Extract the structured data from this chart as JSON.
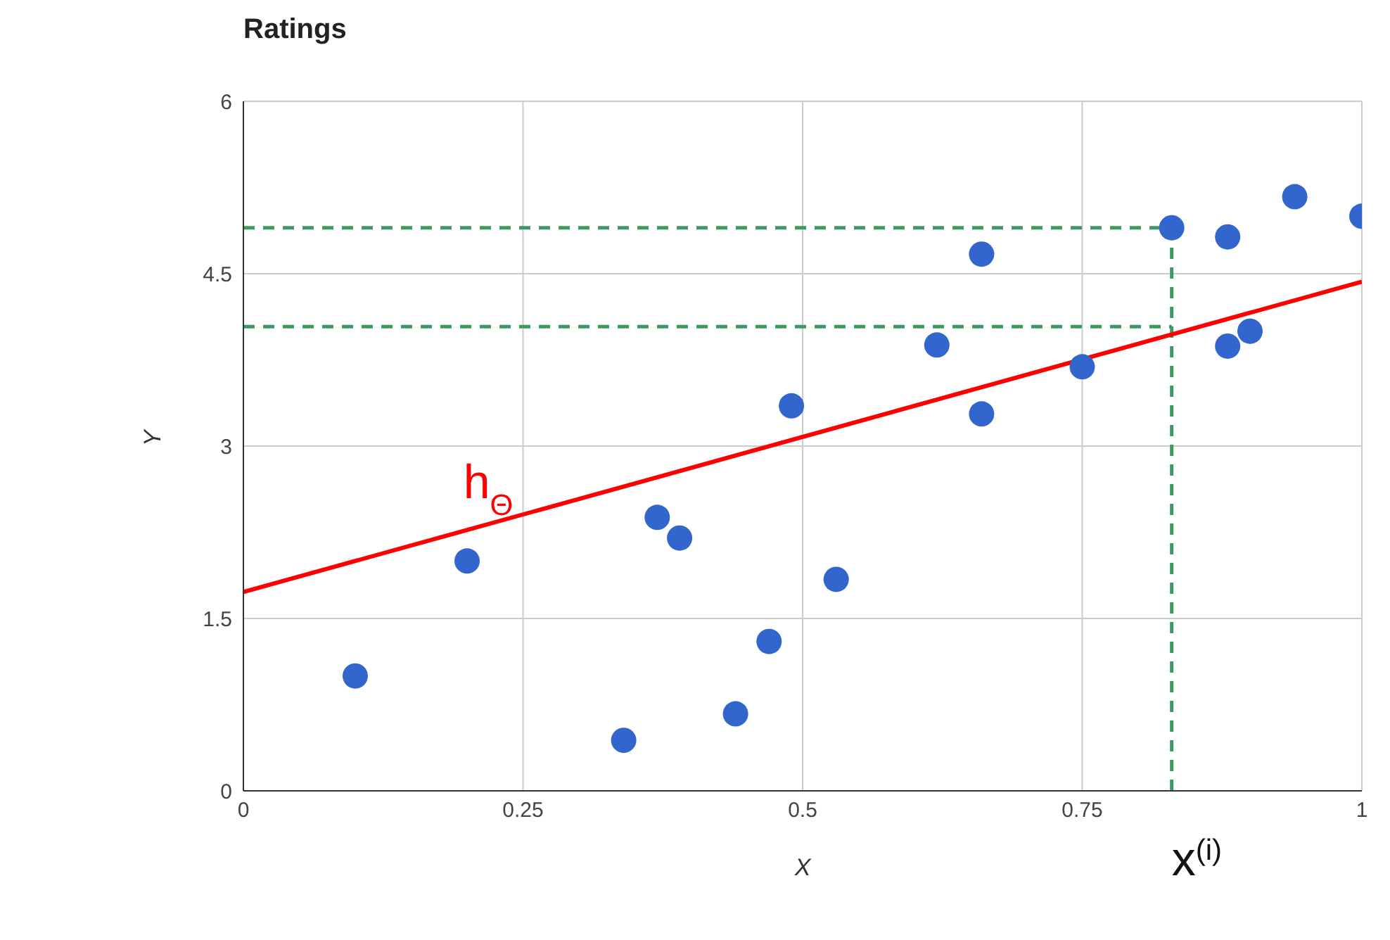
{
  "chart_data": {
    "type": "scatter",
    "title": "Ratings",
    "xlabel": "X",
    "ylabel": "Y",
    "xlim": [
      0,
      1
    ],
    "xticks": [
      0,
      0.25,
      0.5,
      0.75,
      1
    ],
    "ylim": [
      0,
      6
    ],
    "yticks": [
      0,
      1.5,
      3,
      4.5,
      6
    ],
    "grid": true,
    "marker": "circle",
    "series": [
      {
        "color": "#3366cc",
        "x": [
          0.1,
          0.2,
          0.34,
          0.37,
          0.39,
          0.44,
          0.47,
          0.49,
          0.53,
          0.62,
          0.66,
          0.66,
          0.75,
          0.83,
          0.88,
          0.88,
          0.9,
          0.94,
          1.0
        ],
        "values": [
          1.0,
          2.0,
          0.44,
          2.38,
          2.2,
          0.67,
          1.3,
          3.35,
          1.84,
          3.88,
          4.67,
          3.28,
          3.69,
          4.9,
          4.82,
          3.87,
          4.0,
          5.17,
          5.0
        ]
      },
      {
        "type": "line",
        "color": "#ff0000",
        "marker": "none",
        "line_style": "solid",
        "x": [
          0,
          1
        ],
        "values": [
          1.73,
          4.43
        ]
      }
    ],
    "ref_lines": [
      {
        "axis": "y",
        "value": 4.9,
        "color": "#3c9a5f",
        "line_style": "dashed"
      },
      {
        "axis": "y",
        "value": 4.04,
        "color": "#3c9a5f",
        "line_style": "dashed"
      },
      {
        "axis": "x",
        "value": 0.83,
        "color": "#3c9a5f",
        "line_style": "dashed"
      }
    ],
    "annotations": [
      {
        "text": "h$_{Θ}$",
        "x": 0.2,
        "y": 2.3
      },
      {
        "text": "x$^{(i)}$",
        "x": 0.83,
        "y": 0
      }
    ]
  }
}
